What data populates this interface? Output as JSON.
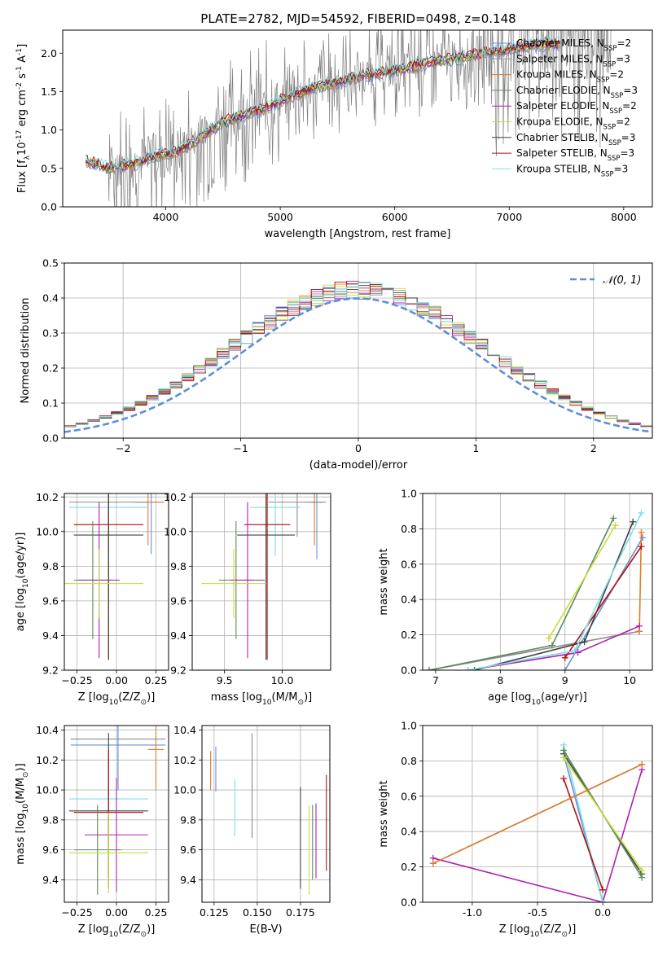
{
  "page_title": "PLATE=2782, MJD=54592, FIBERID=0498, z=0.148",
  "colors": {
    "chabrier_miles": "#6b8fd6",
    "salpeter_miles": "#8c8c8c",
    "kroupa_miles": "#e07b2c",
    "chabrier_elodie": "#5c8a5c",
    "salpeter_elodie": "#b01fb0",
    "kroupa_elodie": "#c8dc3c",
    "chabrier_stelib": "#404040",
    "salpeter_stelib": "#b01010",
    "kroupa_stelib": "#7fdde6",
    "data_gray": "#808080",
    "normal_dash": "#5b8fd6"
  },
  "legend_entries": [
    {
      "name": "Chabrier MILES",
      "nssp": "2"
    },
    {
      "name": "Salpeter MILES",
      "nssp": "3"
    },
    {
      "name": "Kroupa MILES",
      "nssp": "2"
    },
    {
      "name": "Chabrier ELODIE",
      "nssp": "3"
    },
    {
      "name": "Salpeter ELODIE",
      "nssp": "2"
    },
    {
      "name": "Kroupa ELODIE",
      "nssp": "2"
    },
    {
      "name": "Chabrier STELIB",
      "nssp": "3"
    },
    {
      "name": "Salpeter STELIB",
      "nssp": "3"
    },
    {
      "name": "Kroupa STELIB",
      "nssp": "3"
    }
  ],
  "chart_data": [
    {
      "id": "spectrum",
      "type": "line",
      "title": "PLATE=2782, MJD=54592, FIBERID=0498, z=0.148",
      "xlabel": "wavelength [Angstrom, rest frame]",
      "ylabel": "Flux [f$_\\lambda$10$^{-17}$ erg cm$^{-2}$ s$^{-1}$ A$^{-1}$]",
      "xlim": [
        3100,
        8250
      ],
      "ylim": [
        0,
        2.3
      ],
      "xticks": [
        4000,
        5000,
        6000,
        7000,
        8000
      ],
      "yticks": [
        0.0,
        0.5,
        1.0,
        1.5,
        2.0
      ],
      "grid": false,
      "legend_position": "top-right",
      "continuum_x": [
        3300,
        3500,
        3700,
        3900,
        4100,
        4300,
        4500,
        4700,
        4900,
        5100,
        5300,
        5500,
        5700,
        5900,
        6100,
        6300,
        6500,
        6700,
        6900,
        7100,
        7300
      ],
      "continuum_y": [
        0.6,
        0.5,
        0.55,
        0.65,
        0.72,
        0.9,
        1.1,
        1.2,
        1.3,
        1.45,
        1.55,
        1.62,
        1.7,
        1.75,
        1.8,
        1.88,
        1.92,
        1.98,
        2.02,
        2.08,
        2.12
      ]
    },
    {
      "id": "residuals",
      "type": "line",
      "xlabel": "(data-model)/error",
      "ylabel": "Normed distribution",
      "xlim": [
        -2.5,
        2.5
      ],
      "ylim": [
        0,
        0.5
      ],
      "xticks": [
        -2,
        -1,
        0,
        1,
        2
      ],
      "yticks": [
        0.0,
        0.1,
        0.2,
        0.3,
        0.4,
        0.5
      ],
      "grid": true,
      "legend_position": "top-right",
      "series": [
        {
          "name": "$\\mathcal{N}(0,1)$",
          "mean": 0,
          "sigma": 1
        }
      ]
    },
    {
      "id": "age_vs_z",
      "type": "scatter",
      "xlabel": "Z [log$_{10}$(Z/Z$_\\odot$)]",
      "ylabel": "age  [log$_{10}$(age/yr)]",
      "xlim": [
        -0.33,
        0.33
      ],
      "ylim": [
        9.2,
        10.22
      ],
      "xticks": [
        -0.25,
        0.0,
        0.25
      ],
      "yticks": [
        9.2,
        9.4,
        9.6,
        9.8,
        10.0,
        10.2
      ],
      "grid": true,
      "points": [
        {
          "series": "Chabrier MILES",
          "x": 0.22,
          "y": 10.17,
          "xerr": 0.08,
          "yerr": 0.3
        },
        {
          "series": "Kroupa MILES",
          "x": 0.2,
          "y": 10.17,
          "xerr": 0.1,
          "yerr": 0.25
        },
        {
          "series": "Salpeter MILES",
          "x": -0.05,
          "y": 10.17,
          "xerr": 0.25,
          "yerr": 0.22
        },
        {
          "series": "Kroupa STELIB",
          "x": -0.05,
          "y": 10.14,
          "xerr": 0.25,
          "yerr": 0.25
        },
        {
          "series": "Salpeter STELIB",
          "x": -0.05,
          "y": 10.04,
          "xerr": 0.22,
          "yerr": 0.78
        },
        {
          "series": "Chabrier STELIB",
          "x": -0.05,
          "y": 9.98,
          "xerr": 0.22,
          "yerr": 0.72
        },
        {
          "series": "Chabrier ELODIE",
          "x": -0.15,
          "y": 9.72,
          "xerr": 0.12,
          "yerr": 0.34
        },
        {
          "series": "Salpeter ELODIE",
          "x": -0.11,
          "y": 9.72,
          "xerr": 0.13,
          "yerr": 0.45
        },
        {
          "series": "Kroupa ELODIE",
          "x": -0.11,
          "y": 9.7,
          "xerr": 0.28,
          "yerr": 0.2
        }
      ]
    },
    {
      "id": "age_vs_mass",
      "type": "scatter",
      "xlabel": "mass [log$_{10}$(M/M$_\\odot$)]",
      "ylabel": "",
      "xlim": [
        9.22,
        10.42
      ],
      "ylim": [
        9.2,
        10.22
      ],
      "xticks": [
        9.5,
        10.0
      ],
      "yticks": [
        9.2,
        9.4,
        9.6,
        9.8,
        10.0,
        10.2
      ],
      "grid": true,
      "points": [
        {
          "series": "Chabrier MILES",
          "x": 10.3,
          "y": 10.17,
          "xerr": 0.05,
          "yerr": 0.33
        },
        {
          "series": "Kroupa MILES",
          "x": 10.28,
          "y": 10.17,
          "xerr": 0.08,
          "yerr": 0.25
        },
        {
          "series": "Salpeter MILES",
          "x": 10.13,
          "y": 10.17,
          "xerr": 0.25,
          "yerr": 0.2
        },
        {
          "series": "Kroupa STELIB",
          "x": 9.94,
          "y": 10.14,
          "xerr": 0.22,
          "yerr": 0.28
        },
        {
          "series": "Salpeter STELIB",
          "x": 9.87,
          "y": 10.04,
          "xerr": 0.2,
          "yerr": 0.78
        },
        {
          "series": "Chabrier STELIB",
          "x": 9.86,
          "y": 9.98,
          "xerr": 0.25,
          "yerr": 0.72
        },
        {
          "series": "Chabrier ELODIE",
          "x": 9.6,
          "y": 9.72,
          "xerr": 0.15,
          "yerr": 0.34
        },
        {
          "series": "Salpeter ELODIE",
          "x": 9.7,
          "y": 9.72,
          "xerr": 0.15,
          "yerr": 0.45
        },
        {
          "series": "Kroupa ELODIE",
          "x": 9.58,
          "y": 9.7,
          "xerr": 0.28,
          "yerr": 0.2
        }
      ]
    },
    {
      "id": "weight_vs_age",
      "type": "line",
      "xlabel": "age  [log$_{10}$(age/yr)]",
      "ylabel": "mass weight",
      "xlim": [
        6.8,
        10.35
      ],
      "ylim": [
        0,
        1.0
      ],
      "xticks": [
        7,
        8,
        9,
        10
      ],
      "yticks": [
        0.0,
        0.2,
        0.4,
        0.6,
        0.8,
        1.0
      ],
      "grid": true,
      "series": [
        {
          "name": "Chabrier MILES",
          "x": [
            9.0,
            10.2
          ],
          "y": [
            0.0,
            0.75
          ]
        },
        {
          "name": "Salpeter MILES",
          "x": [
            6.9,
            10.15
          ],
          "y": [
            0.0,
            0.22
          ]
        },
        {
          "name": "Kroupa MILES",
          "x": [
            10.15,
            10.18
          ],
          "y": [
            0.22,
            0.78
          ]
        },
        {
          "name": "Chabrier ELODIE",
          "x": [
            6.9,
            8.8,
            9.75
          ],
          "y": [
            0.0,
            0.14,
            0.86
          ]
        },
        {
          "name": "Salpeter ELODIE",
          "x": [
            7.5,
            9.2,
            10.15
          ],
          "y": [
            0.0,
            0.1,
            0.25
          ]
        },
        {
          "name": "Kroupa ELODIE",
          "x": [
            8.75,
            9.78
          ],
          "y": [
            0.18,
            0.82
          ]
        },
        {
          "name": "Chabrier STELIB",
          "x": [
            7.6,
            9.3,
            10.05
          ],
          "y": [
            0.0,
            0.16,
            0.84
          ]
        },
        {
          "name": "Salpeter STELIB",
          "x": [
            9.0,
            10.18
          ],
          "y": [
            0.07,
            0.7
          ]
        },
        {
          "name": "Kroupa STELIB",
          "x": [
            7.5,
            9.15,
            10.18
          ],
          "y": [
            0.0,
            0.11,
            0.89
          ]
        }
      ]
    },
    {
      "id": "mass_vs_z",
      "type": "scatter",
      "xlabel": "Z [log$_{10}$(Z/Z$_\\odot$)]",
      "ylabel": "mass [log$_{10}$(M/M$_\\odot$)]",
      "xlim": [
        -0.33,
        0.33
      ],
      "ylim": [
        9.25,
        10.43
      ],
      "xticks": [
        -0.25,
        0.0,
        0.25
      ],
      "yticks": [
        9.4,
        9.6,
        9.8,
        10.0,
        10.2,
        10.4
      ],
      "grid": true,
      "points": [
        {
          "series": "Salpeter MILES",
          "x": 0.01,
          "y": 10.34,
          "xerr": 0.3,
          "yerr": 0.3
        },
        {
          "series": "Chabrier MILES",
          "x": 0.01,
          "y": 10.3,
          "xerr": 0.3,
          "yerr": 0.3
        },
        {
          "series": "Kroupa MILES",
          "x": 0.25,
          "y": 10.27,
          "xerr": 0.05,
          "yerr": 0.27
        },
        {
          "series": "Kroupa STELIB",
          "x": -0.05,
          "y": 9.94,
          "xerr": 0.25,
          "yerr": 0.27
        },
        {
          "series": "Chabrier STELIB",
          "x": -0.05,
          "y": 9.86,
          "xerr": 0.25,
          "yerr": 0.52
        },
        {
          "series": "Salpeter STELIB",
          "x": -0.05,
          "y": 9.85,
          "xerr": 0.22,
          "yerr": 0.42
        },
        {
          "series": "Salpeter ELODIE",
          "x": 0.0,
          "y": 9.7,
          "xerr": 0.2,
          "yerr": 0.38
        },
        {
          "series": "Chabrier ELODIE",
          "x": -0.12,
          "y": 9.6,
          "xerr": 0.15,
          "yerr": 0.3
        },
        {
          "series": "Kroupa ELODIE",
          "x": -0.05,
          "y": 9.58,
          "xerr": 0.25,
          "yerr": 0.27
        }
      ]
    },
    {
      "id": "mass_vs_ebv",
      "type": "scatter",
      "xlabel": "E(B-V)",
      "ylabel": "",
      "xlim": [
        0.118,
        0.192
      ],
      "ylim": [
        9.25,
        10.43
      ],
      "xticks": [
        0.125,
        0.15,
        0.175
      ],
      "yticks": [
        9.4,
        9.6,
        9.8,
        10.0,
        10.2,
        10.4
      ],
      "grid": true,
      "points": [
        {
          "series": "Kroupa MILES",
          "x": 0.123,
          "y": 10.13,
          "yerr": 0.13
        },
        {
          "series": "Chabrier MILES",
          "x": 0.126,
          "y": 10.14,
          "yerr": 0.15
        },
        {
          "series": "Kroupa STELIB",
          "x": 0.137,
          "y": 9.88,
          "yerr": 0.19
        },
        {
          "series": "Salpeter MILES",
          "x": 0.147,
          "y": 10.03,
          "yerr": 0.35
        },
        {
          "series": "Chabrier STELIB",
          "x": 0.175,
          "y": 9.68,
          "yerr": 0.34
        },
        {
          "series": "Kroupa ELODIE",
          "x": 0.18,
          "y": 9.6,
          "yerr": 0.3
        },
        {
          "series": "Chabrier ELODIE",
          "x": 0.182,
          "y": 9.65,
          "yerr": 0.25
        },
        {
          "series": "Salpeter ELODIE",
          "x": 0.184,
          "y": 9.66,
          "yerr": 0.25
        },
        {
          "series": "Salpeter STELIB",
          "x": 0.19,
          "y": 9.78,
          "yerr": 0.32
        }
      ]
    },
    {
      "id": "weight_vs_z",
      "type": "line",
      "xlabel": "Z [log$_{10}$(Z/Z$_\\odot$)]",
      "ylabel": "mass weight",
      "xlim": [
        -1.38,
        0.38
      ],
      "ylim": [
        0,
        1.0
      ],
      "xticks": [
        -1.0,
        -0.5,
        0.0
      ],
      "yticks": [
        0.0,
        0.2,
        0.4,
        0.6,
        0.8,
        1.0
      ],
      "grid": true,
      "series": [
        {
          "name": "Salpeter ELODIE",
          "x": [
            -1.3,
            0.0,
            0.3
          ],
          "y": [
            0.25,
            0.0,
            0.75
          ]
        },
        {
          "name": "Chabrier MILES",
          "x": [
            -0.3,
            0.0
          ],
          "y": [
            0.84,
            0.0
          ]
        },
        {
          "name": "Kroupa STELIB",
          "x": [
            -0.3,
            0.0
          ],
          "y": [
            0.89,
            0.0
          ]
        },
        {
          "name": "Salpeter STELIB",
          "x": [
            -0.3,
            0.0
          ],
          "y": [
            0.7,
            0.07
          ]
        },
        {
          "name": "Chabrier STELIB",
          "x": [
            -0.3,
            0.3
          ],
          "y": [
            0.84,
            0.16
          ]
        },
        {
          "name": "Chabrier ELODIE",
          "x": [
            -0.3,
            0.3
          ],
          "y": [
            0.86,
            0.14
          ]
        },
        {
          "name": "Kroupa ELODIE",
          "x": [
            -0.3,
            0.3
          ],
          "y": [
            0.82,
            0.18
          ]
        },
        {
          "name": "Salpeter MILES",
          "x": [
            -1.3,
            0.3
          ],
          "y": [
            0.22,
            0.78
          ]
        },
        {
          "name": "Kroupa MILES",
          "x": [
            -1.3,
            0.3
          ],
          "y": [
            0.22,
            0.78
          ]
        }
      ]
    }
  ]
}
